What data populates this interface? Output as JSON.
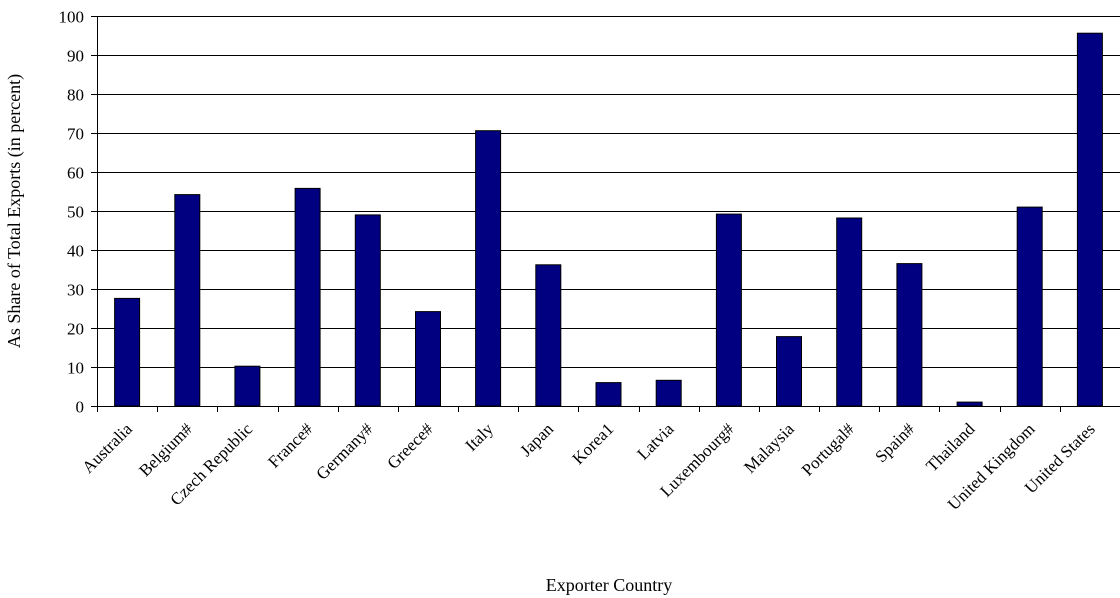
{
  "chart_data": {
    "type": "bar",
    "title": "",
    "xlabel": "Exporter Country",
    "ylabel": "As Share of Total Exports (in percent)",
    "ylim": [
      0,
      100
    ],
    "yticks": [
      0,
      10,
      20,
      30,
      40,
      50,
      60,
      70,
      80,
      90,
      100
    ],
    "grid": "horizontal",
    "legend": "none",
    "bar_color": "#000080",
    "categories": [
      "Australia",
      "Belgium#",
      "Czech Republic",
      "France#",
      "Germany#",
      "Greece#",
      "Italy",
      "Japan",
      "Korea1",
      "Latvia",
      "Luxembourg#",
      "Malaysia",
      "Portugal#",
      "Spain#",
      "Thailand",
      "United Kingdom",
      "United States"
    ],
    "values": [
      27.6,
      54.2,
      10.2,
      55.8,
      49.0,
      24.2,
      70.6,
      36.2,
      6.0,
      6.6,
      49.2,
      17.8,
      48.2,
      36.5,
      1.0,
      51.0,
      95.6
    ]
  }
}
